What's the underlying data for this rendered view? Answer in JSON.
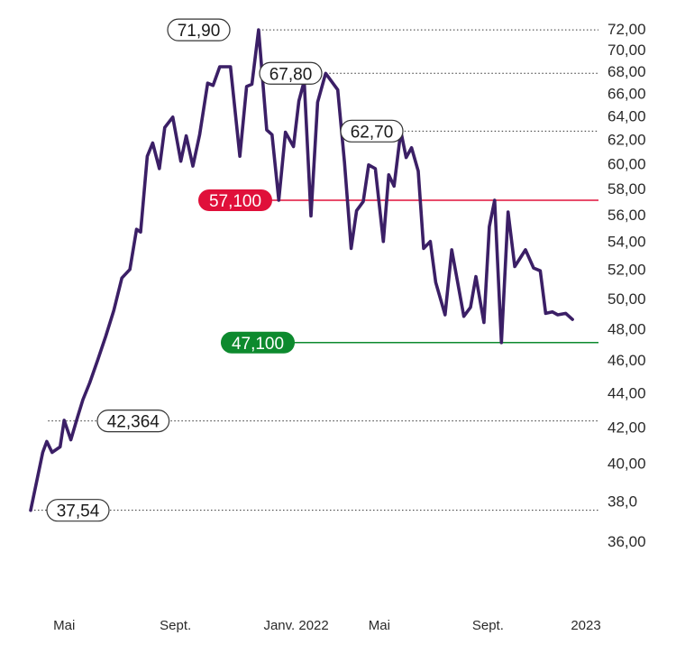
{
  "chart_data": {
    "type": "line",
    "series": [
      {
        "color": "#3b1f66",
        "points": [
          [
            0,
            37.54
          ],
          [
            0.9,
            40.6
          ],
          [
            1.2,
            41.2
          ],
          [
            1.6,
            40.6
          ],
          [
            2.2,
            40.9
          ],
          [
            2.5,
            42.4
          ],
          [
            3.0,
            41.3
          ],
          [
            3.5,
            42.6
          ],
          [
            3.9,
            43.6
          ],
          [
            4.4,
            44.6
          ],
          [
            5.0,
            46.0
          ],
          [
            5.6,
            47.5
          ],
          [
            6.2,
            49.2
          ],
          [
            6.8,
            51.4
          ],
          [
            7.4,
            52.0
          ],
          [
            7.9,
            54.9
          ],
          [
            8.2,
            54.7
          ],
          [
            8.7,
            60.6
          ],
          [
            9.1,
            61.7
          ],
          [
            9.6,
            59.6
          ],
          [
            10.0,
            63.0
          ],
          [
            10.6,
            63.9
          ],
          [
            11.2,
            60.2
          ],
          [
            11.6,
            62.3
          ],
          [
            12.1,
            59.8
          ],
          [
            12.6,
            62.4
          ],
          [
            13.2,
            66.9
          ],
          [
            13.6,
            66.7
          ],
          [
            14.1,
            68.4
          ],
          [
            14.9,
            68.4
          ],
          [
            15.6,
            60.6
          ],
          [
            16.1,
            66.6
          ],
          [
            16.5,
            66.8
          ],
          [
            17.0,
            71.9
          ],
          [
            17.6,
            62.8
          ],
          [
            18.0,
            62.4
          ],
          [
            18.5,
            57.1
          ],
          [
            19.0,
            62.6
          ],
          [
            19.6,
            61.4
          ],
          [
            20.0,
            65.3
          ],
          [
            20.4,
            67.1
          ],
          [
            20.9,
            55.9
          ],
          [
            21.4,
            65.2
          ],
          [
            22.0,
            67.8
          ],
          [
            22.9,
            66.3
          ],
          [
            23.4,
            60.1
          ],
          [
            23.9,
            53.5
          ],
          [
            24.3,
            56.3
          ],
          [
            24.8,
            57.0
          ],
          [
            25.2,
            59.9
          ],
          [
            25.7,
            59.6
          ],
          [
            26.3,
            54.0
          ],
          [
            26.7,
            59.1
          ],
          [
            27.1,
            58.2
          ],
          [
            27.6,
            62.7
          ],
          [
            28.0,
            60.5
          ],
          [
            28.4,
            61.3
          ],
          [
            28.9,
            59.4
          ],
          [
            29.3,
            53.5
          ],
          [
            29.8,
            54.0
          ],
          [
            30.2,
            51.1
          ],
          [
            30.9,
            48.9
          ],
          [
            31.4,
            53.4
          ],
          [
            32.3,
            48.8
          ],
          [
            32.8,
            49.4
          ],
          [
            33.2,
            51.5
          ],
          [
            33.8,
            48.4
          ],
          [
            34.2,
            55.1
          ],
          [
            34.6,
            57.1
          ],
          [
            35.1,
            47.1
          ],
          [
            35.6,
            56.2
          ],
          [
            36.1,
            52.2
          ],
          [
            36.9,
            53.4
          ],
          [
            37.5,
            52.1
          ],
          [
            38.0,
            51.9
          ],
          [
            38.4,
            49.0
          ],
          [
            38.9,
            49.1
          ],
          [
            39.3,
            48.9
          ],
          [
            39.9,
            49.0
          ],
          [
            40.4,
            48.6
          ]
        ]
      }
    ],
    "y_scale": "log",
    "y_ticks": [
      {
        "value": 72,
        "label": "72,00"
      },
      {
        "value": 70,
        "label": "70,00"
      },
      {
        "value": 68,
        "label": "68,00"
      },
      {
        "value": 66,
        "label": "66,00"
      },
      {
        "value": 64,
        "label": "64,00"
      },
      {
        "value": 62,
        "label": "62,00"
      },
      {
        "value": 60,
        "label": "60,00"
      },
      {
        "value": 58,
        "label": "58,00"
      },
      {
        "value": 56,
        "label": "56,00"
      },
      {
        "value": 54,
        "label": "54,00"
      },
      {
        "value": 52,
        "label": "52,00"
      },
      {
        "value": 50,
        "label": "50,00"
      },
      {
        "value": 48,
        "label": "48,00"
      },
      {
        "value": 46,
        "label": "46,00"
      },
      {
        "value": 44,
        "label": "44,00"
      },
      {
        "value": 42,
        "label": "42,00"
      },
      {
        "value": 40,
        "label": "40,00"
      },
      {
        "value": 38,
        "label": "38,0"
      },
      {
        "value": 36,
        "label": "36,00"
      }
    ],
    "x_ticks": [
      {
        "value": 2.5,
        "label": "Mai"
      },
      {
        "value": 10.8,
        "label": "Sept."
      },
      {
        "value": 19.8,
        "label": "Janv. 2022"
      },
      {
        "value": 26.0,
        "label": "Mai"
      },
      {
        "value": 34.1,
        "label": "Sept."
      },
      {
        "value": 41.4,
        "label": "2023"
      }
    ],
    "callouts": [
      {
        "value": 71.9,
        "label": "71,90",
        "x": 17.0
      },
      {
        "value": 67.8,
        "label": "67,80",
        "x": 22.0
      },
      {
        "value": 62.7,
        "label": "62,70",
        "x": 27.6
      },
      {
        "value": 42.364,
        "label": "42,364",
        "x": 1.3
      },
      {
        "value": 37.54,
        "label": "37,54",
        "x": 0
      }
    ],
    "levels": [
      {
        "value": 57.1,
        "label": "57,100",
        "color": "#e0103a"
      },
      {
        "value": 47.1,
        "label": "47,100",
        "color": "#0d8a2e"
      }
    ],
    "grid": false,
    "legend": "none"
  }
}
